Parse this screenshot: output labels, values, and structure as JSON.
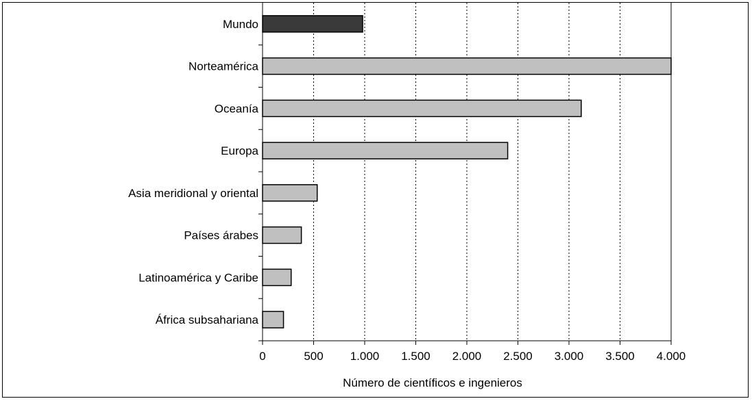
{
  "chart_data": {
    "type": "bar",
    "orientation": "horizontal",
    "categories": [
      "Mundo",
      "Norteamérica",
      "Oceanía",
      "Europa",
      "Asia meridional y oriental",
      "Países árabes",
      "Latinoamérica y Caribe",
      "África subsahariana"
    ],
    "values": [
      980,
      4000,
      3120,
      2400,
      535,
      380,
      280,
      205
    ],
    "bar_colors": [
      "#3a3a3a",
      "#c0c0c0",
      "#c0c0c0",
      "#c0c0c0",
      "#c0c0c0",
      "#c0c0c0",
      "#c0c0c0",
      "#c0c0c0"
    ],
    "title": "",
    "xlabel": "Número de científicos e ingenieros",
    "ylabel": "",
    "xlim": [
      0,
      4000
    ],
    "xticks": [
      0,
      500,
      1000,
      1500,
      2000,
      2500,
      3000,
      3500,
      4000
    ],
    "xtick_labels": [
      "0",
      "500",
      "1.000",
      "1.500",
      "2.000",
      "2.500",
      "3.000",
      "3.500",
      "4.000"
    ],
    "grid": "vertical-dotted"
  }
}
